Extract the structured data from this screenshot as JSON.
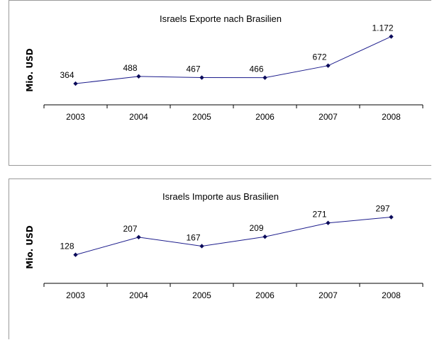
{
  "chart_data": [
    {
      "type": "line",
      "title": "Israels Exporte nach Brasilien",
      "xlabel": "",
      "ylabel": "Mio. USD",
      "categories": [
        "2003",
        "2004",
        "2005",
        "2006",
        "2007",
        "2008"
      ],
      "values": [
        364,
        488,
        467,
        466,
        672,
        1172
      ],
      "data_labels": [
        "364",
        "488",
        "467",
        "466",
        "672",
        "1.172"
      ],
      "ylim": [
        0,
        1300
      ],
      "grid": false,
      "legend": "none",
      "line_color": "#1c1c8c",
      "marker_color": "#0a0a5a"
    },
    {
      "type": "line",
      "title": "Israels Importe aus Brasilien",
      "xlabel": "",
      "ylabel": "Mio. USD",
      "categories": [
        "2003",
        "2004",
        "2005",
        "2006",
        "2007",
        "2008"
      ],
      "values": [
        128,
        207,
        167,
        209,
        271,
        297
      ],
      "data_labels": [
        "128",
        "207",
        "167",
        "209",
        "271",
        "297"
      ],
      "ylim": [
        0,
        340
      ],
      "grid": false,
      "legend": "none",
      "line_color": "#1c1c8c",
      "marker_color": "#0a0a5a"
    }
  ]
}
